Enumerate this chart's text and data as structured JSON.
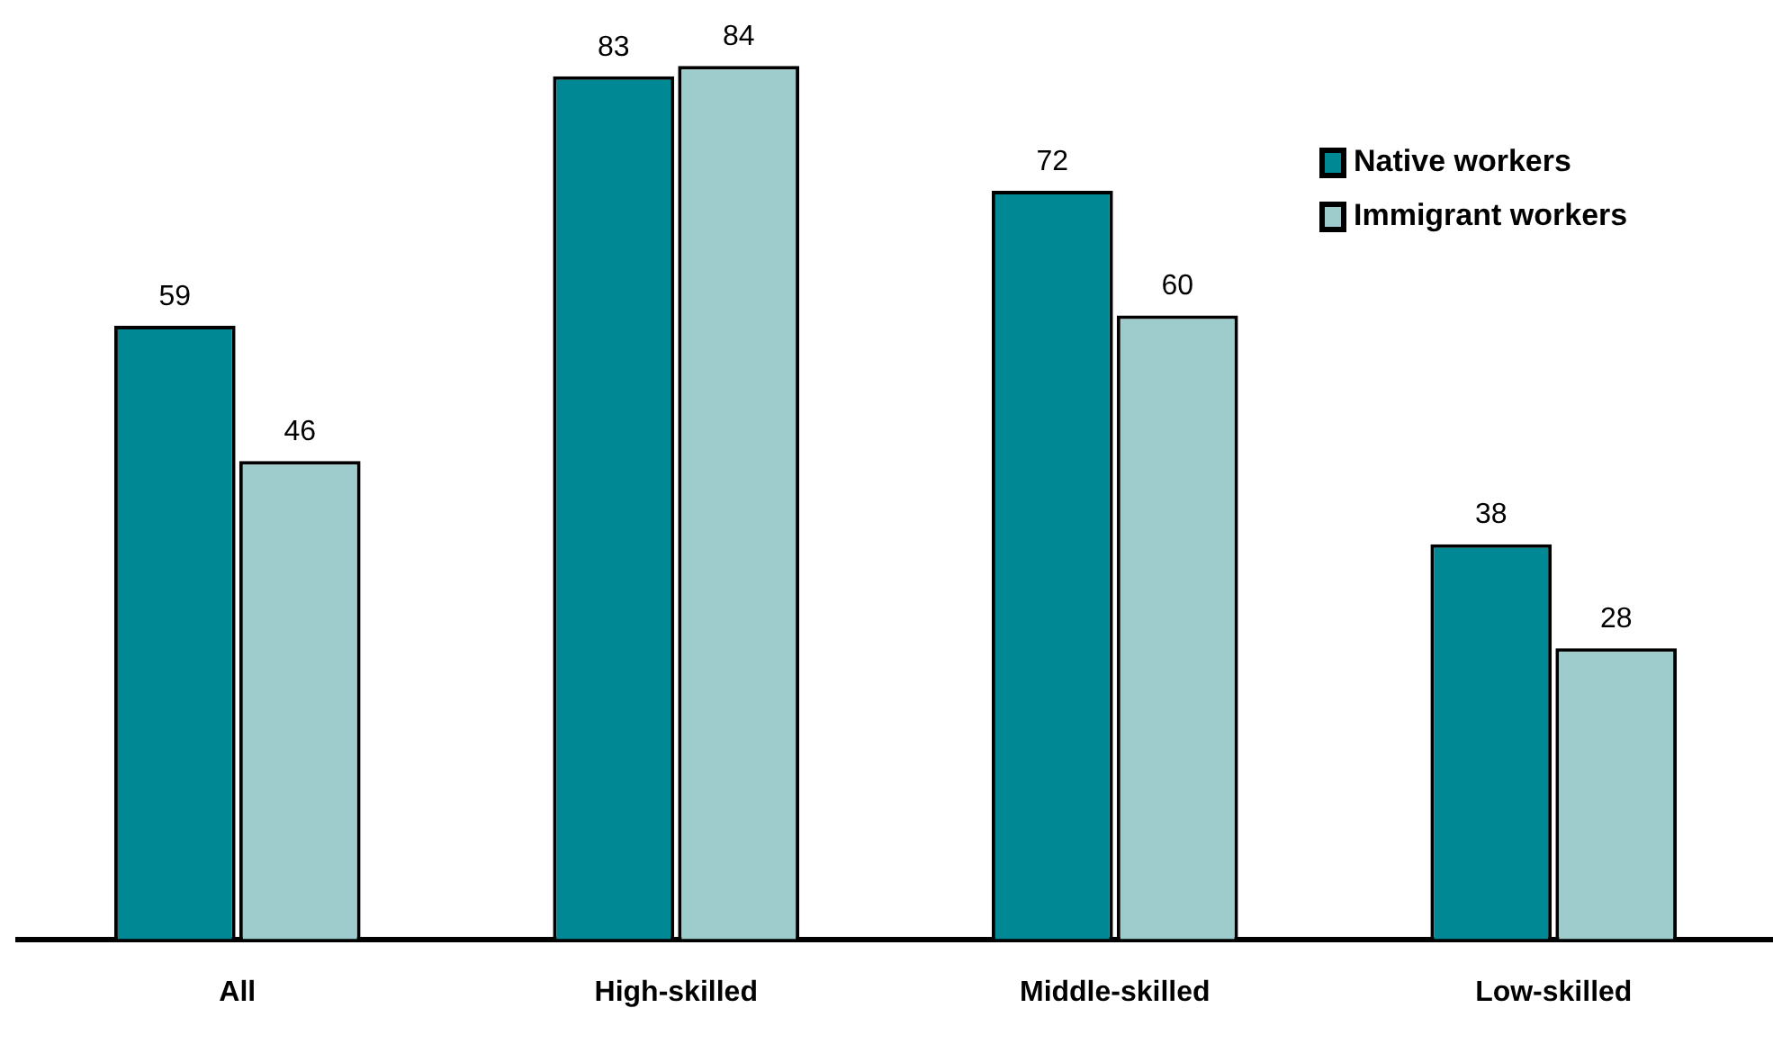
{
  "chart_data": {
    "type": "bar",
    "categories": [
      "All",
      "High-skilled",
      "Middle-skilled",
      "Low-skilled"
    ],
    "series": [
      {
        "name": "Native workers",
        "color": "#008894",
        "values": [
          59,
          83,
          72,
          38
        ]
      },
      {
        "name": "Immigrant workers",
        "color": "#9ecccd",
        "values": [
          46,
          84,
          60,
          28
        ]
      }
    ],
    "tick_labels": "x",
    "data_labels": true,
    "legend": "top right",
    "grid": false
  }
}
